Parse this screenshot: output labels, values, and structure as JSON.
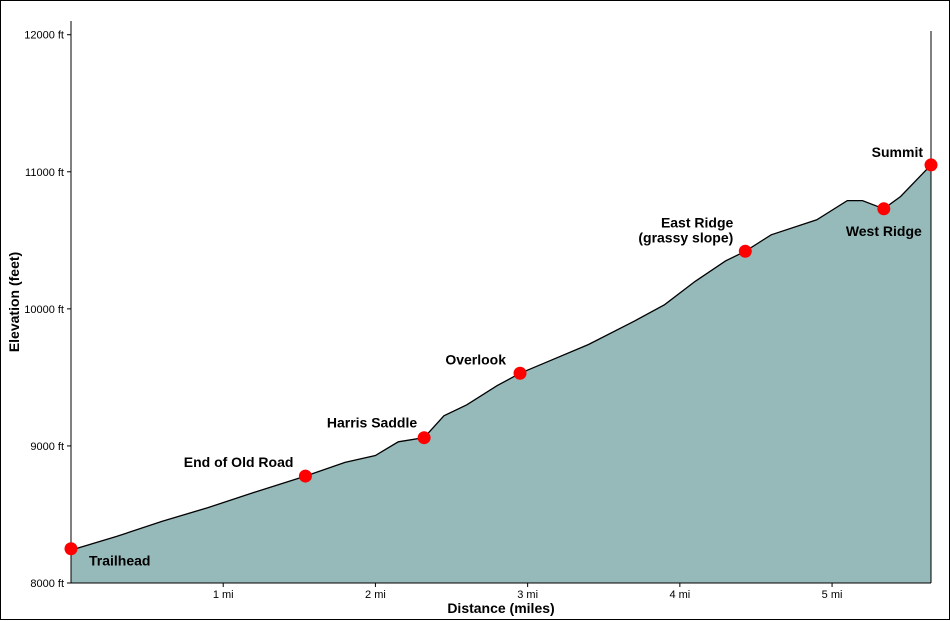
{
  "chart_data": {
    "type": "area",
    "xlabel": "Distance (miles)",
    "ylabel": "Elevation (feet)",
    "xlim": [
      0,
      5.65
    ],
    "ylim": [
      8000,
      12100
    ],
    "x_ticks": [
      {
        "value": 1,
        "label": "1 mi"
      },
      {
        "value": 2,
        "label": "2 mi"
      },
      {
        "value": 3,
        "label": "3 mi"
      },
      {
        "value": 4,
        "label": "4 mi"
      },
      {
        "value": 5,
        "label": "5 mi"
      }
    ],
    "y_ticks": [
      {
        "value": 8000,
        "label": "8000 ft"
      },
      {
        "value": 9000,
        "label": "9000 ft"
      },
      {
        "value": 10000,
        "label": "10000 ft"
      },
      {
        "value": 11000,
        "label": "11000 ft"
      },
      {
        "value": 12000,
        "label": "12000 ft"
      }
    ],
    "profile": {
      "x": [
        0,
        0.3,
        0.6,
        0.9,
        1.2,
        1.54,
        1.8,
        2.0,
        2.15,
        2.32,
        2.45,
        2.6,
        2.8,
        2.95,
        3.1,
        3.4,
        3.7,
        3.9,
        4.1,
        4.3,
        4.43,
        4.6,
        4.9,
        5.1,
        5.2,
        5.34,
        5.45,
        5.65
      ],
      "y": [
        8240,
        8340,
        8450,
        8550,
        8660,
        8780,
        8880,
        8930,
        9030,
        9060,
        9220,
        9300,
        9440,
        9530,
        9600,
        9740,
        9910,
        10030,
        10200,
        10350,
        10420,
        10540,
        10650,
        10790,
        10790,
        10730,
        10820,
        11050
      ]
    },
    "waypoints": [
      {
        "name": "Trailhead",
        "x": 0.0,
        "y": 8250
      },
      {
        "name": "End of Old Road",
        "x": 1.54,
        "y": 8780
      },
      {
        "name": "Harris Saddle",
        "x": 2.32,
        "y": 9060
      },
      {
        "name": "Overlook",
        "x": 2.95,
        "y": 9530
      },
      {
        "name": "East Ridge",
        "name_line2": "(grassy slope)",
        "x": 4.43,
        "y": 10420
      },
      {
        "name": "West Ridge",
        "x": 5.34,
        "y": 10730
      },
      {
        "name": "Summit",
        "x": 5.65,
        "y": 11050
      }
    ],
    "colors": {
      "fill": "#96b9ba",
      "line": "#000000",
      "marker": "#ff0000"
    }
  }
}
